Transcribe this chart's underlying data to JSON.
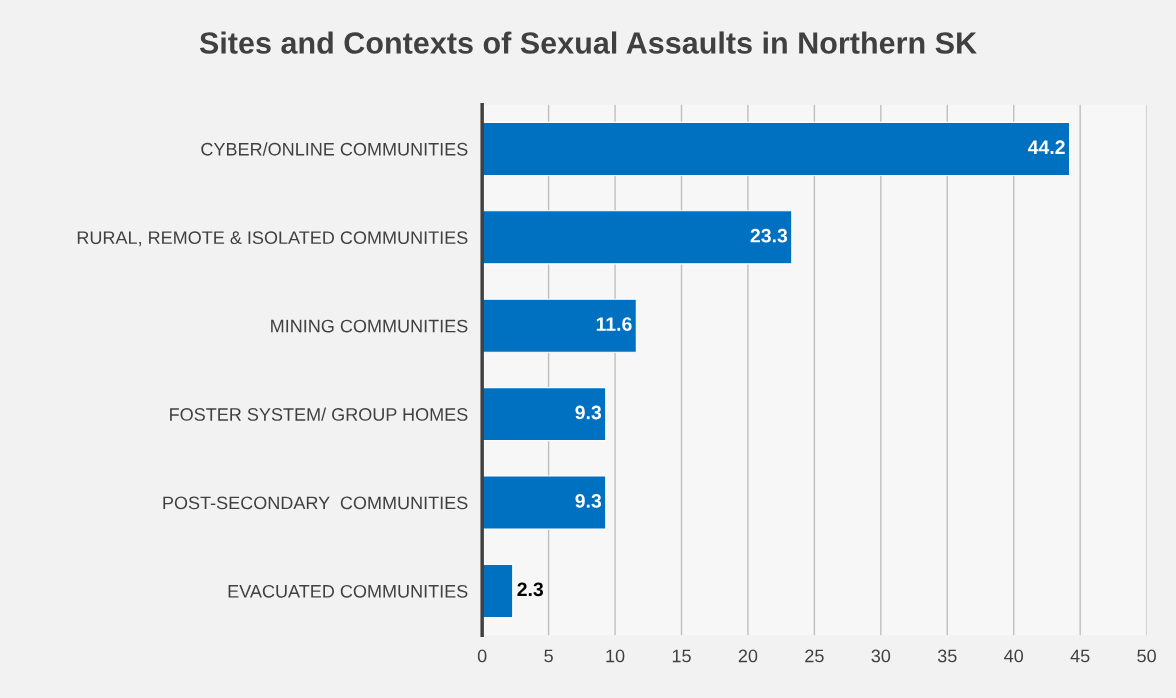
{
  "chart_data": {
    "type": "bar",
    "orientation": "horizontal",
    "title": "Sites and Contexts of Sexual Assaults in Northern SK",
    "categories": [
      "CYBER/ONLINE COMMUNITIES",
      "RURAL, REMOTE & ISOLATED COMMUNITIES",
      "MINING COMMUNITIES",
      "FOSTER SYSTEM/ GROUP HOMES",
      "POST-SECONDARY  COMMUNITIES",
      "EVACUATED COMMUNITIES"
    ],
    "values": [
      44.2,
      23.3,
      11.6,
      9.3,
      9.3,
      2.3
    ],
    "color": "#0070c0",
    "xlim": [
      0,
      50
    ],
    "xticks": [
      0,
      5,
      10,
      15,
      20,
      25,
      30,
      35,
      40,
      45,
      50
    ],
    "grid": "x",
    "data_labels": true,
    "legend": false
  }
}
